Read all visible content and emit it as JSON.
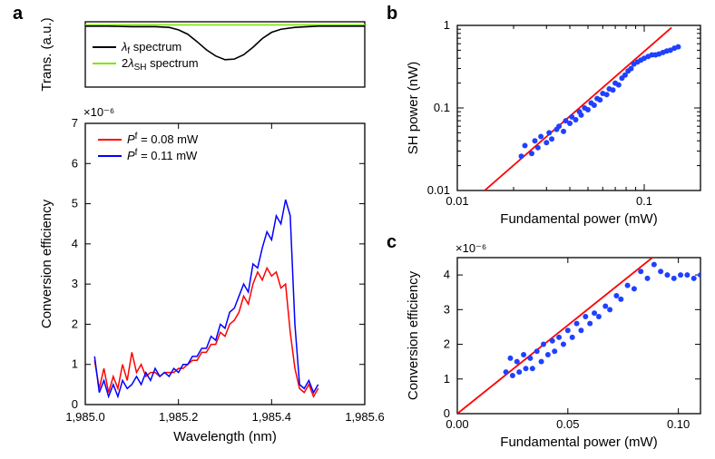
{
  "panels": {
    "a": "a",
    "b": "b",
    "c": "c"
  },
  "colors": {
    "black": "#000000",
    "green": "#7fe600",
    "red": "#ff0000",
    "blue": "#0000ff",
    "dot": "#2040ff"
  },
  "a_top": {
    "y_title": "Trans. (a.u.)",
    "xlim": [
      1985.0,
      1985.6
    ],
    "lines": {
      "black": {
        "label": "λ",
        "sub": "f",
        "tail": " spectrum",
        "color": "#000000",
        "pts": [
          [
            1985.0,
            0.98
          ],
          [
            1985.05,
            0.98
          ],
          [
            1985.1,
            0.97
          ],
          [
            1985.15,
            0.97
          ],
          [
            1985.18,
            0.96
          ],
          [
            1985.2,
            0.92
          ],
          [
            1985.22,
            0.85
          ],
          [
            1985.24,
            0.73
          ],
          [
            1985.26,
            0.6
          ],
          [
            1985.28,
            0.5
          ],
          [
            1985.3,
            0.44
          ],
          [
            1985.32,
            0.45
          ],
          [
            1985.34,
            0.52
          ],
          [
            1985.36,
            0.64
          ],
          [
            1985.38,
            0.78
          ],
          [
            1985.4,
            0.88
          ],
          [
            1985.42,
            0.93
          ],
          [
            1985.45,
            0.96
          ],
          [
            1985.5,
            0.98
          ],
          [
            1985.55,
            0.98
          ],
          [
            1985.6,
            0.98
          ]
        ]
      },
      "green": {
        "label": "2λ",
        "sub": "SH",
        "tail": " spectrum",
        "color": "#7fe600",
        "pts": [
          [
            1985.0,
            1.0
          ],
          [
            1985.6,
            1.0
          ]
        ]
      }
    }
  },
  "a_bottom": {
    "x_title": "Wavelength (nm)",
    "y_title": "Conversion efficiency",
    "exp_label": "×10⁻⁶",
    "xlim": [
      1985.0,
      1985.6
    ],
    "ylim": [
      0,
      7
    ],
    "xtick_step": 0.2,
    "ytick_step": 1,
    "legend": {
      "red": {
        "label": "P",
        "sup": "f",
        "val": " = 0.08 mW"
      },
      "blue": {
        "label": "P",
        "sup": "f",
        "val": " = 0.11 mW"
      }
    },
    "red": {
      "color": "#ff0000",
      "pts": [
        [
          1985.02,
          1.1
        ],
        [
          1985.03,
          0.4
        ],
        [
          1985.04,
          0.9
        ],
        [
          1985.05,
          0.3
        ],
        [
          1985.06,
          0.7
        ],
        [
          1985.07,
          0.4
        ],
        [
          1985.08,
          1.0
        ],
        [
          1985.09,
          0.6
        ],
        [
          1985.1,
          1.3
        ],
        [
          1985.11,
          0.8
        ],
        [
          1985.12,
          1.0
        ],
        [
          1985.13,
          0.7
        ],
        [
          1985.14,
          0.8
        ],
        [
          1985.15,
          0.8
        ],
        [
          1985.16,
          0.7
        ],
        [
          1985.17,
          0.8
        ],
        [
          1985.18,
          0.8
        ],
        [
          1985.19,
          0.8
        ],
        [
          1985.2,
          0.9
        ],
        [
          1985.21,
          0.9
        ],
        [
          1985.22,
          1.0
        ],
        [
          1985.23,
          1.1
        ],
        [
          1985.24,
          1.1
        ],
        [
          1985.25,
          1.3
        ],
        [
          1985.26,
          1.3
        ],
        [
          1985.27,
          1.5
        ],
        [
          1985.28,
          1.5
        ],
        [
          1985.29,
          1.8
        ],
        [
          1985.3,
          1.7
        ],
        [
          1985.31,
          2.0
        ],
        [
          1985.32,
          2.1
        ],
        [
          1985.33,
          2.3
        ],
        [
          1985.34,
          2.7
        ],
        [
          1985.35,
          2.5
        ],
        [
          1985.36,
          3.0
        ],
        [
          1985.37,
          3.3
        ],
        [
          1985.38,
          3.1
        ],
        [
          1985.39,
          3.4
        ],
        [
          1985.4,
          3.2
        ],
        [
          1985.41,
          3.3
        ],
        [
          1985.42,
          2.9
        ],
        [
          1985.43,
          3.0
        ],
        [
          1985.44,
          1.8
        ],
        [
          1985.45,
          0.9
        ],
        [
          1985.46,
          0.4
        ],
        [
          1985.47,
          0.3
        ],
        [
          1985.48,
          0.5
        ],
        [
          1985.49,
          0.2
        ],
        [
          1985.5,
          0.4
        ]
      ]
    },
    "blue": {
      "color": "#0000ff",
      "pts": [
        [
          1985.02,
          1.2
        ],
        [
          1985.03,
          0.3
        ],
        [
          1985.04,
          0.6
        ],
        [
          1985.05,
          0.2
        ],
        [
          1985.06,
          0.5
        ],
        [
          1985.07,
          0.2
        ],
        [
          1985.08,
          0.6
        ],
        [
          1985.09,
          0.4
        ],
        [
          1985.1,
          0.5
        ],
        [
          1985.11,
          0.7
        ],
        [
          1985.12,
          0.5
        ],
        [
          1985.13,
          0.8
        ],
        [
          1985.14,
          0.6
        ],
        [
          1985.15,
          0.9
        ],
        [
          1985.16,
          0.7
        ],
        [
          1985.17,
          0.8
        ],
        [
          1985.18,
          0.7
        ],
        [
          1985.19,
          0.9
        ],
        [
          1985.2,
          0.8
        ],
        [
          1985.21,
          1.0
        ],
        [
          1985.22,
          1.0
        ],
        [
          1985.23,
          1.2
        ],
        [
          1985.24,
          1.2
        ],
        [
          1985.25,
          1.4
        ],
        [
          1985.26,
          1.4
        ],
        [
          1985.27,
          1.7
        ],
        [
          1985.28,
          1.6
        ],
        [
          1985.29,
          2.0
        ],
        [
          1985.3,
          1.9
        ],
        [
          1985.31,
          2.3
        ],
        [
          1985.32,
          2.4
        ],
        [
          1985.33,
          2.7
        ],
        [
          1985.34,
          3.0
        ],
        [
          1985.35,
          2.8
        ],
        [
          1985.36,
          3.5
        ],
        [
          1985.37,
          3.4
        ],
        [
          1985.38,
          3.9
        ],
        [
          1985.39,
          4.3
        ],
        [
          1985.4,
          4.1
        ],
        [
          1985.41,
          4.7
        ],
        [
          1985.42,
          4.5
        ],
        [
          1985.43,
          5.1
        ],
        [
          1985.44,
          4.7
        ],
        [
          1985.45,
          2.0
        ],
        [
          1985.46,
          0.5
        ],
        [
          1985.47,
          0.4
        ],
        [
          1985.48,
          0.6
        ],
        [
          1985.49,
          0.3
        ],
        [
          1985.5,
          0.5
        ]
      ]
    }
  },
  "b": {
    "x_title": "Fundamental power (mW)",
    "y_title": "SH power (nW)",
    "xlog": true,
    "ylog": true,
    "xlim": [
      0.01,
      0.2
    ],
    "ylim": [
      0.01,
      1.0
    ],
    "xticks": [
      {
        "v": 0.01,
        "l": "0.01"
      },
      {
        "v": 0.1,
        "l": "0.1"
      }
    ],
    "yticks": [
      {
        "v": 0.01,
        "l": "0.01"
      },
      {
        "v": 0.1,
        "l": "0.1"
      },
      {
        "v": 1,
        "l": "1"
      }
    ],
    "line": {
      "color": "#ff0000",
      "pts": [
        [
          0.014,
          0.01
        ],
        [
          0.14,
          0.94
        ]
      ]
    },
    "dot_color": "#2040ff",
    "pts": [
      [
        0.022,
        0.026
      ],
      [
        0.023,
        0.035
      ],
      [
        0.025,
        0.028
      ],
      [
        0.026,
        0.04
      ],
      [
        0.027,
        0.033
      ],
      [
        0.028,
        0.045
      ],
      [
        0.03,
        0.038
      ],
      [
        0.031,
        0.05
      ],
      [
        0.032,
        0.042
      ],
      [
        0.034,
        0.055
      ],
      [
        0.035,
        0.06
      ],
      [
        0.037,
        0.052
      ],
      [
        0.038,
        0.07
      ],
      [
        0.04,
        0.065
      ],
      [
        0.041,
        0.078
      ],
      [
        0.043,
        0.072
      ],
      [
        0.045,
        0.09
      ],
      [
        0.046,
        0.082
      ],
      [
        0.048,
        0.1
      ],
      [
        0.05,
        0.095
      ],
      [
        0.052,
        0.115
      ],
      [
        0.054,
        0.108
      ],
      [
        0.056,
        0.13
      ],
      [
        0.058,
        0.125
      ],
      [
        0.06,
        0.15
      ],
      [
        0.063,
        0.145
      ],
      [
        0.065,
        0.17
      ],
      [
        0.068,
        0.165
      ],
      [
        0.07,
        0.2
      ],
      [
        0.073,
        0.19
      ],
      [
        0.076,
        0.23
      ],
      [
        0.079,
        0.25
      ],
      [
        0.082,
        0.28
      ],
      [
        0.085,
        0.3
      ],
      [
        0.088,
        0.34
      ],
      [
        0.092,
        0.36
      ],
      [
        0.096,
        0.38
      ],
      [
        0.1,
        0.4
      ],
      [
        0.105,
        0.42
      ],
      [
        0.11,
        0.44
      ],
      [
        0.115,
        0.44
      ],
      [
        0.12,
        0.45
      ],
      [
        0.126,
        0.47
      ],
      [
        0.132,
        0.49
      ],
      [
        0.138,
        0.5
      ],
      [
        0.145,
        0.53
      ],
      [
        0.152,
        0.55
      ]
    ]
  },
  "c": {
    "x_title": "Fundamental power (mW)",
    "y_title": "Conversion efficiency",
    "exp_label": "×10⁻⁶",
    "xlim": [
      0.0,
      0.11
    ],
    "ylim": [
      0,
      4.5
    ],
    "xticks": [
      {
        "v": 0.0,
        "l": "0.00"
      },
      {
        "v": 0.05,
        "l": "0.05"
      },
      {
        "v": 0.1,
        "l": "0.10"
      }
    ],
    "yticks": [
      {
        "v": 0,
        "l": "0"
      },
      {
        "v": 1,
        "l": "1"
      },
      {
        "v": 2,
        "l": "2"
      },
      {
        "v": 3,
        "l": "3"
      },
      {
        "v": 4,
        "l": "4"
      }
    ],
    "line": {
      "color": "#ff0000",
      "pts": [
        [
          0.0,
          0.0
        ],
        [
          0.1,
          5.1
        ]
      ]
    },
    "dot_color": "#2040ff",
    "pts": [
      [
        0.022,
        1.2
      ],
      [
        0.024,
        1.6
      ],
      [
        0.025,
        1.1
      ],
      [
        0.027,
        1.5
      ],
      [
        0.028,
        1.2
      ],
      [
        0.03,
        1.7
      ],
      [
        0.031,
        1.3
      ],
      [
        0.033,
        1.6
      ],
      [
        0.034,
        1.3
      ],
      [
        0.036,
        1.8
      ],
      [
        0.038,
        1.5
      ],
      [
        0.039,
        2.0
      ],
      [
        0.041,
        1.7
      ],
      [
        0.043,
        2.1
      ],
      [
        0.044,
        1.8
      ],
      [
        0.046,
        2.2
      ],
      [
        0.048,
        2.0
      ],
      [
        0.05,
        2.4
      ],
      [
        0.052,
        2.2
      ],
      [
        0.054,
        2.6
      ],
      [
        0.056,
        2.4
      ],
      [
        0.058,
        2.8
      ],
      [
        0.06,
        2.6
      ],
      [
        0.062,
        2.9
      ],
      [
        0.064,
        2.8
      ],
      [
        0.067,
        3.1
      ],
      [
        0.069,
        3.0
      ],
      [
        0.072,
        3.4
      ],
      [
        0.074,
        3.3
      ],
      [
        0.077,
        3.7
      ],
      [
        0.08,
        3.6
      ],
      [
        0.083,
        4.1
      ],
      [
        0.086,
        3.9
      ],
      [
        0.089,
        4.3
      ],
      [
        0.092,
        4.1
      ],
      [
        0.095,
        4.0
      ],
      [
        0.098,
        3.9
      ],
      [
        0.101,
        4.0
      ],
      [
        0.104,
        4.0
      ],
      [
        0.107,
        3.9
      ],
      [
        0.11,
        4.0
      ]
    ]
  }
}
